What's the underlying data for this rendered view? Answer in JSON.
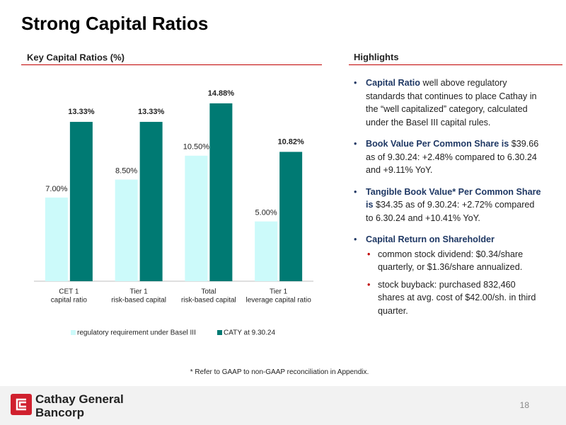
{
  "title": "Strong Capital Ratios",
  "chart_data": {
    "type": "bar",
    "title": "Key Capital Ratios (%)",
    "categories": [
      [
        "CET 1",
        "capital ratio"
      ],
      [
        "Tier 1",
        "risk-based capital"
      ],
      [
        "Total",
        "risk-based capital"
      ],
      [
        "Tier 1",
        "leverage capital ratio"
      ]
    ],
    "series": [
      {
        "name": "regulatory requirement under Basel III",
        "color": "#ccfafa",
        "values": [
          7.0,
          8.5,
          10.5,
          5.0
        ],
        "value_labels": [
          "7.00%",
          "8.50%",
          "10.50%",
          "5.00%"
        ]
      },
      {
        "name": "CATY at 9.30.24",
        "color": "#007a73",
        "values": [
          13.33,
          13.33,
          14.88,
          10.82
        ],
        "value_labels": [
          "13.33%",
          "13.33%",
          "14.88%",
          "10.82%"
        ]
      }
    ],
    "ylim": [
      0,
      16
    ]
  },
  "highlights": {
    "title": "Highlights",
    "items": [
      {
        "lead": "Capital Ratio",
        "text": " well above regulatory standards that continues to place Cathay in the “well capitalized” category, calculated under the Basel III capital rules."
      },
      {
        "lead": "Book Value Per Common Share is",
        "text": " $39.66 as of 9.30.24: +2.48% compared to 6.30.24 and +9.11% YoY."
      },
      {
        "lead": "Tangible Book Value* Per Common Share is",
        "text": " $34.35 as of 9.30.24: +2.72% compared to 6.30.24 and +10.41% YoY."
      },
      {
        "lead": "Capital Return on Shareholder",
        "subitems": [
          "common stock dividend: $0.34/share quarterly, or $1.36/share annualized.",
          "stock buyback: purchased 832,460 shares at avg. cost of $42.00/sh. in third quarter."
        ]
      }
    ]
  },
  "footnote": "* Refer to GAAP to non-GAAP reconciliation in Appendix.",
  "company": [
    "Cathay General",
    "Bancorp"
  ],
  "page_number": "18"
}
